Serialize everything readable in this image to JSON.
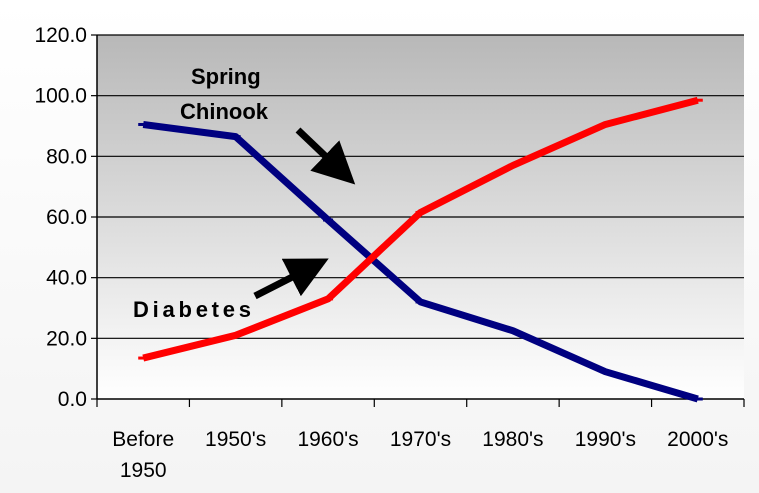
{
  "chart_data": {
    "type": "line",
    "categories": [
      "Before 1950",
      "1950's",
      "1960's",
      "1970's",
      "1980's",
      "1990's",
      "2000's"
    ],
    "category_lines": [
      [
        "Before",
        "1950"
      ],
      [
        "1950's"
      ],
      [
        "1960's"
      ],
      [
        "1970's"
      ],
      [
        "1980's"
      ],
      [
        "1990's"
      ],
      [
        "2000's"
      ]
    ],
    "series": [
      {
        "name": "Spring Chinook",
        "label_lines": [
          "Spring",
          "Chinook"
        ],
        "color": "#000080",
        "values": [
          90.5,
          86.5,
          59.0,
          32.0,
          22.5,
          9.0,
          0.0
        ]
      },
      {
        "name": "Diabetes",
        "label_lines": [
          "Diabetes"
        ],
        "color": "#ff0000",
        "values": [
          13.5,
          21.0,
          33.0,
          61.5,
          77.0,
          90.5,
          98.5
        ]
      }
    ],
    "yticks": [
      "0.0",
      "20.0",
      "40.0",
      "60.0",
      "80.0",
      "100.0",
      "120.0"
    ],
    "ylim": [
      0,
      120
    ],
    "grid": true,
    "plot_background": "#c0c0c0"
  }
}
